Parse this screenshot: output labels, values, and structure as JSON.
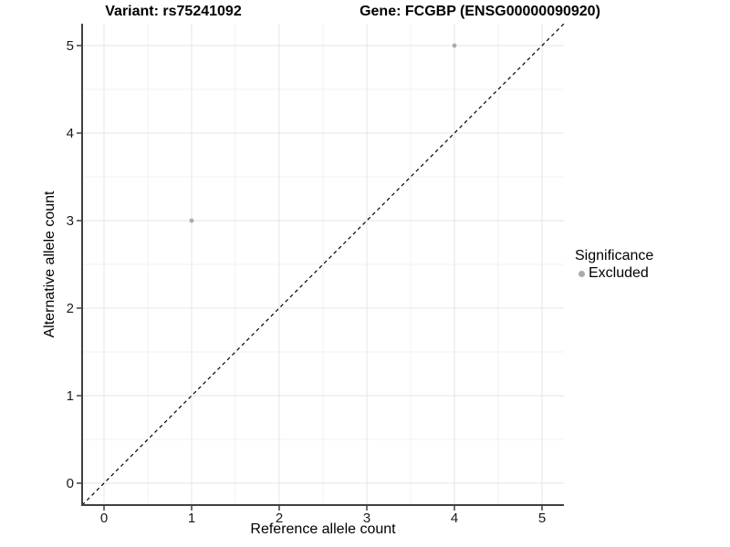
{
  "chart_data": {
    "type": "scatter",
    "title_left": "Variant: rs75241092",
    "title_right": "Gene: FCGBP (ENSG00000090920)",
    "xlabel": "Reference allele count",
    "ylabel": "Alternative allele count",
    "xlim": [
      -0.25,
      5.25
    ],
    "ylim": [
      -0.25,
      5.25
    ],
    "xticks": [
      0,
      1,
      2,
      3,
      4,
      5
    ],
    "yticks": [
      0,
      1,
      2,
      3,
      4,
      5
    ],
    "grid": "on",
    "minor_grid": "on",
    "identity_line": {
      "style": "dashed",
      "slope": 1,
      "intercept": 0,
      "color": "#000000"
    },
    "series": [
      {
        "name": "Excluded",
        "color": "#ababab",
        "marker": "circle",
        "points": [
          {
            "x": 1,
            "y": 3
          },
          {
            "x": 4,
            "y": 5
          }
        ]
      }
    ],
    "legend": {
      "title": "Significance",
      "position": "right",
      "items": [
        {
          "label": "Excluded",
          "color": "#ababab"
        }
      ]
    },
    "style": {
      "background": "#ffffff",
      "grid_major": "#e4e4e4",
      "grid_minor": "#f0f0f0",
      "axis_line": "#404040",
      "tick_color": "#404040",
      "tick_label_color": "#1a1a1a"
    }
  }
}
